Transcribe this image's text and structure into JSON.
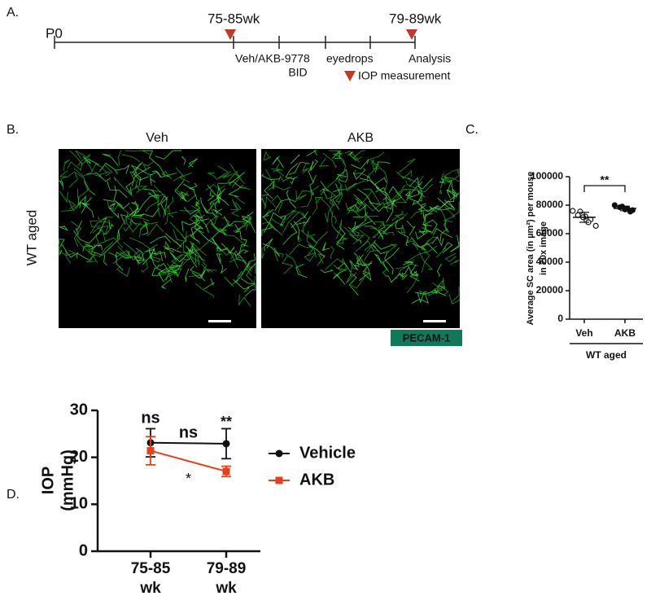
{
  "panels": [
    "A.",
    "B.",
    "C.",
    "D."
  ],
  "timeline": {
    "start": "P0",
    "first": "75-85wk",
    "last": "79-89wk",
    "treatment": "Veh/AKB-9778",
    "route": "eyedrops",
    "dose": "BID",
    "end": "Analysis",
    "marker_legend": "IOP measurement"
  },
  "images": {
    "row_label": "WT aged",
    "columns": [
      "Veh",
      "AKB"
    ],
    "stain": "PECAM-1"
  },
  "chart_data": [
    {
      "type": "dot",
      "ylabel": [
        "Average SC area (in µm²) per mouse",
        "in 20x image"
      ],
      "categories": [
        "Veh",
        "AKB"
      ],
      "group_label": "WT aged",
      "significance": "**",
      "points": [
        [
          76000,
          75500,
          73000,
          72000,
          71500,
          70000,
          68000,
          65500
        ],
        [
          80000,
          79000,
          78500,
          77500,
          77000,
          76500,
          75500
        ]
      ],
      "means": [
        71500,
        77700
      ],
      "errors": [
        3500,
        1600
      ],
      "ylim": [
        0,
        100000
      ],
      "yticks": [
        0,
        20000,
        40000,
        60000,
        80000,
        100000
      ]
    },
    {
      "type": "line",
      "ylabel": [
        "IOP",
        "(mmHg)"
      ],
      "categories": [
        "75-85 wk",
        "79-89 wk"
      ],
      "series": [
        {
          "name": "Vehicle",
          "color": "#111111",
          "marker": "circle",
          "values": [
            23.1,
            22.9
          ],
          "errors": [
            3.0,
            3.2
          ]
        },
        {
          "name": "AKB",
          "color": "#e8401c",
          "marker": "square",
          "values": [
            21.4,
            17.0
          ],
          "errors": [
            3.0,
            1.1
          ]
        }
      ],
      "annotations": [
        "ns",
        "ns",
        "**",
        "*"
      ],
      "ylim": [
        0,
        30
      ],
      "yticks": [
        0,
        10,
        20,
        30
      ]
    }
  ]
}
